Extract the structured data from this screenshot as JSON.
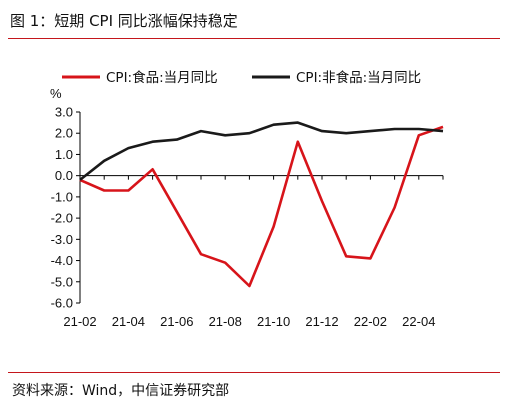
{
  "figure": {
    "title": "图 1：短期 CPI 同比涨幅保持稳定",
    "source": "资料来源：Wind，中信证券研究部"
  },
  "chart_data": {
    "type": "line",
    "x": [
      "21-02",
      "21-03",
      "21-04",
      "21-05",
      "21-06",
      "21-07",
      "21-08",
      "21-09",
      "21-10",
      "21-11",
      "21-12",
      "22-01",
      "22-02",
      "22-03",
      "22-04",
      "22-05"
    ],
    "x_tick_labels": [
      "21-02",
      "21-04",
      "21-06",
      "21-08",
      "21-10",
      "21-12",
      "22-02",
      "22-04"
    ],
    "y_unit_label": "%",
    "ylim": [
      -6.0,
      3.0
    ],
    "y_ticks": [
      "3.0",
      "2.0",
      "1.0",
      "0.0",
      "-1.0",
      "-2.0",
      "-3.0",
      "-4.0",
      "-5.0",
      "-6.0"
    ],
    "grid": false,
    "legend_position": "top",
    "series": [
      {
        "name": "CPI:食品:当月同比",
        "color": "#d7141a",
        "values": [
          -0.2,
          -0.7,
          -0.7,
          0.3,
          -1.7,
          -3.7,
          -4.1,
          -5.2,
          -2.4,
          1.6,
          -1.2,
          -3.8,
          -3.9,
          -1.5,
          1.9,
          2.3
        ]
      },
      {
        "name": "CPI:非食品:当月同比",
        "color": "#1a1a1a",
        "values": [
          -0.2,
          0.7,
          1.3,
          1.6,
          1.7,
          2.1,
          1.9,
          2.0,
          2.4,
          2.5,
          2.1,
          2.0,
          2.1,
          2.2,
          2.2,
          2.1
        ]
      }
    ]
  }
}
